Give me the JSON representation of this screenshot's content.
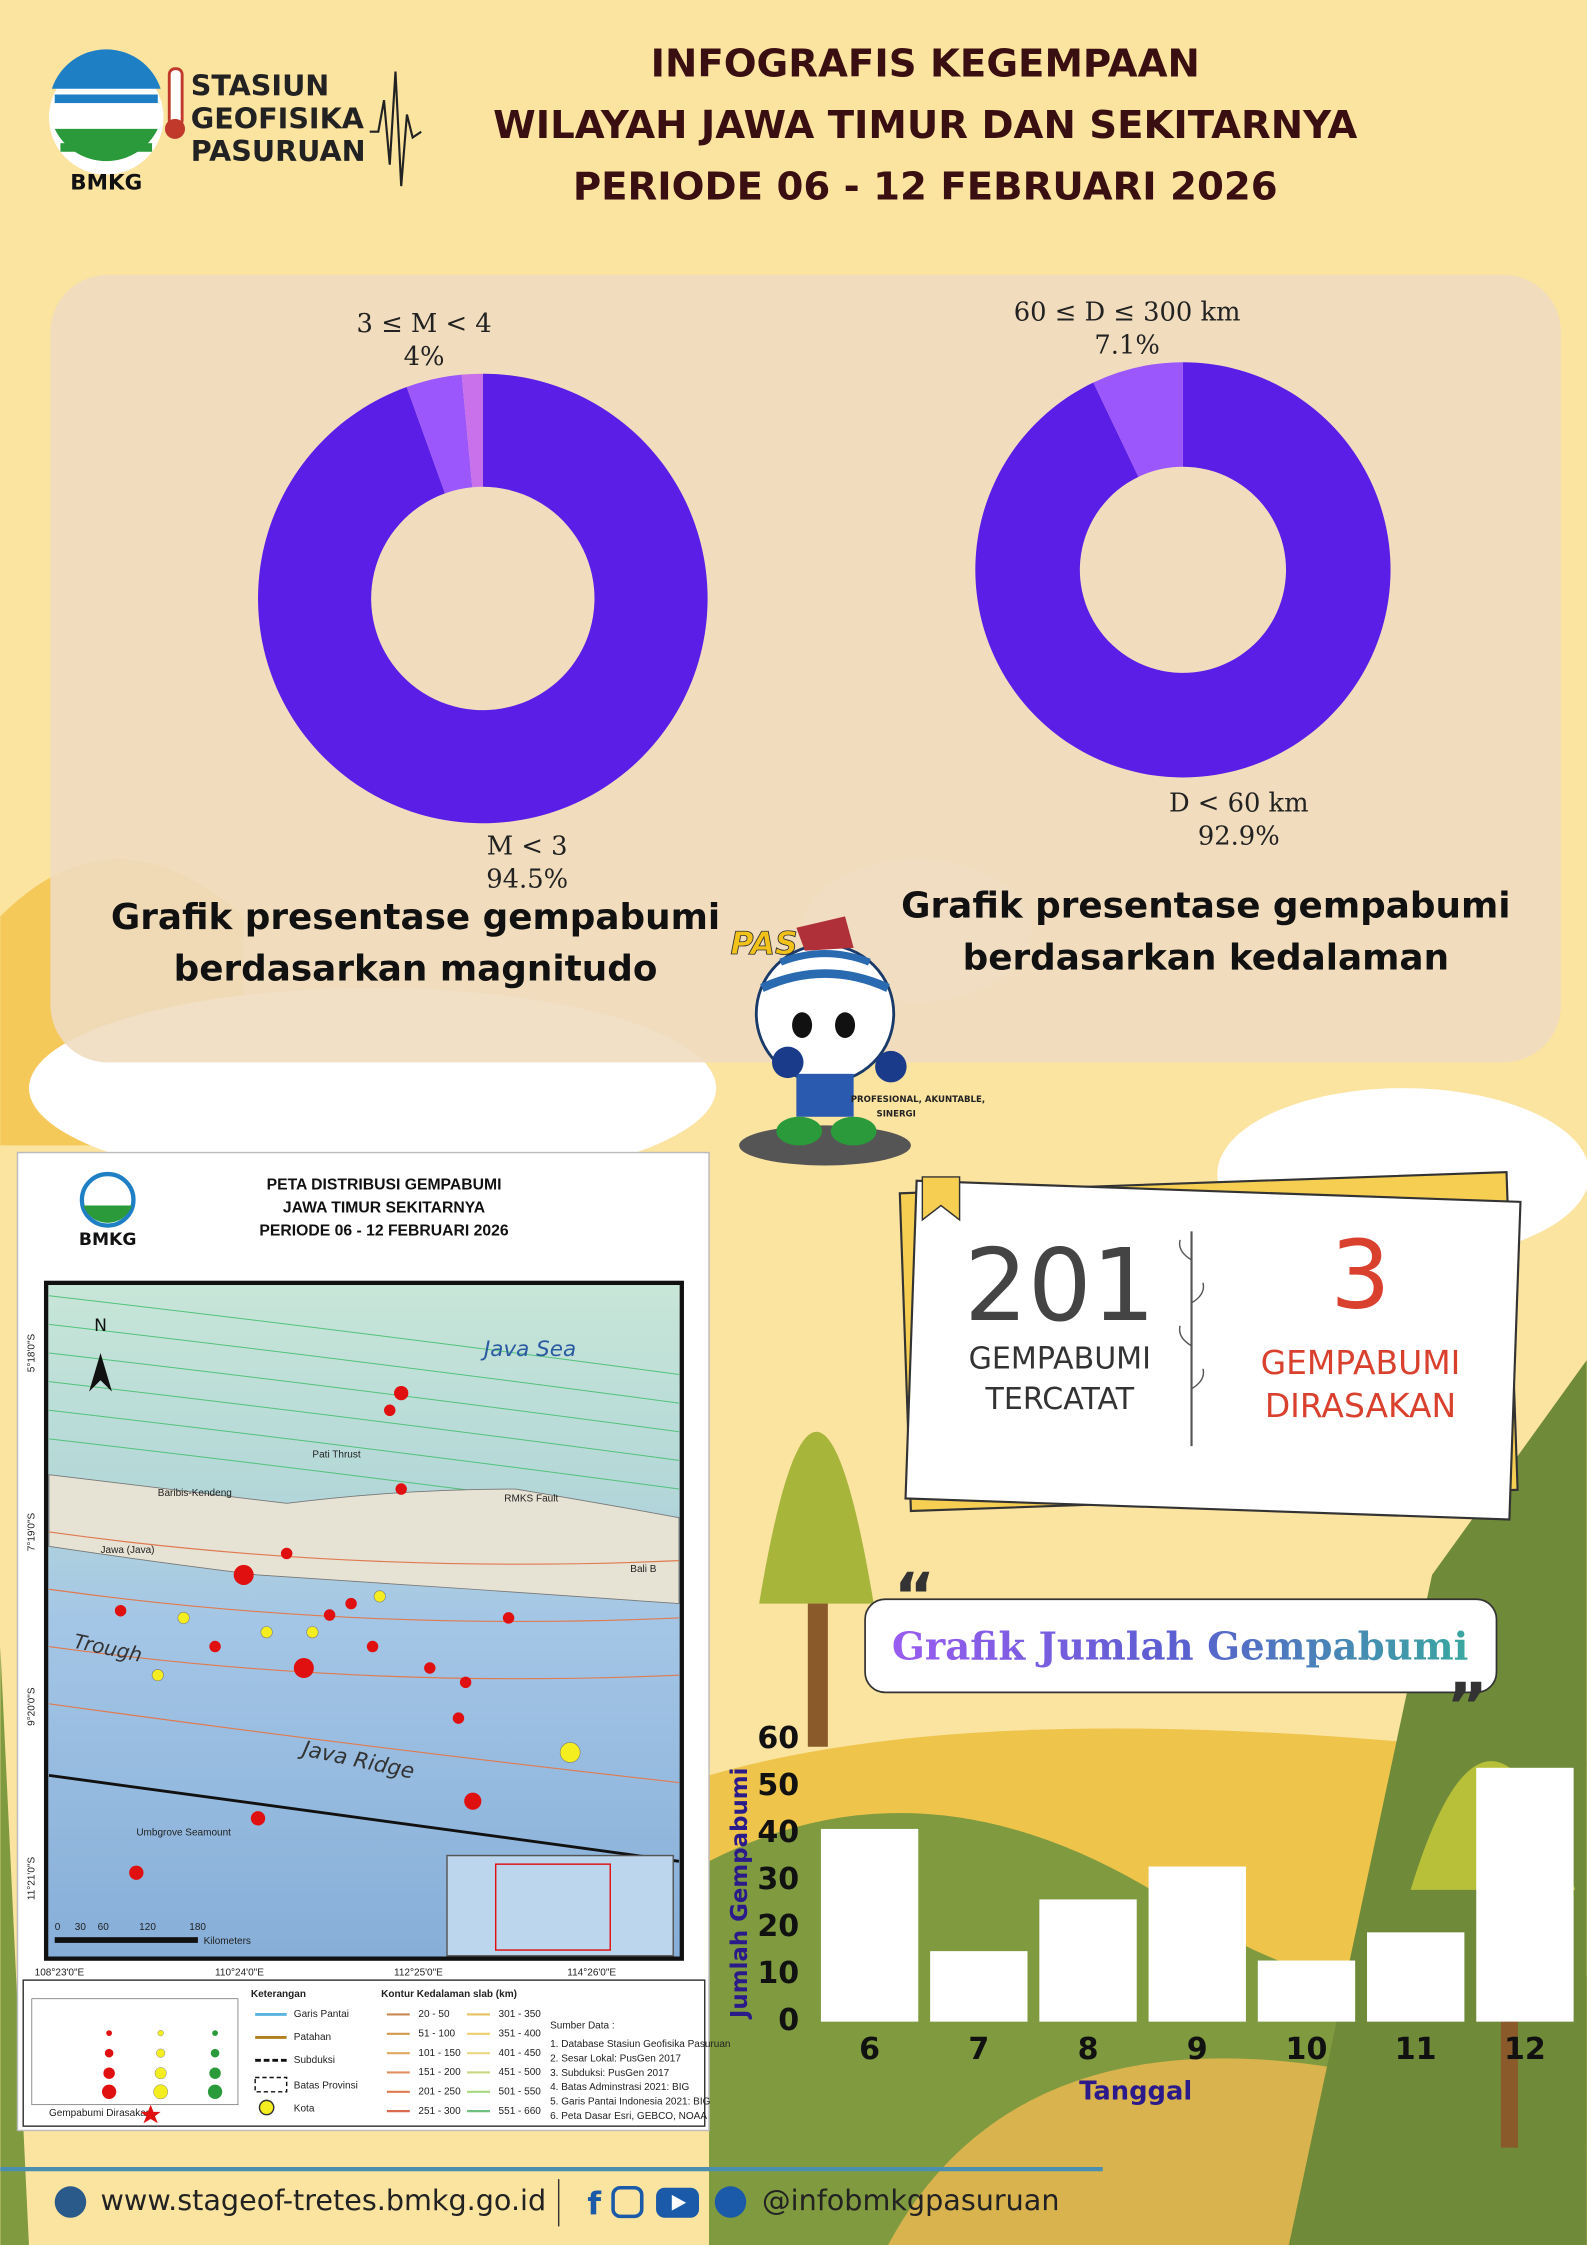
{
  "header": {
    "logo": "BMKG",
    "org": [
      "STASIUN",
      "GEOFISIKA",
      "PASURUAN"
    ],
    "title": [
      "INFOGRAFIS KEGEMPAAN",
      "WILAYAH JAWA TIMUR DAN SEKITARNYA",
      "PERIODE 06 - 12 FEBRUARI 2026"
    ]
  },
  "chart_data": [
    {
      "type": "pie",
      "categories": [
        "M < 3",
        "3 ≤ M < 4",
        null
      ],
      "values": [
        94.5,
        4,
        1.5
      ],
      "value_labels": [
        "94.5%",
        "4%",
        null
      ],
      "colors": [
        "#5a1ee6",
        "#9b57fb",
        "#c971ea"
      ],
      "caption": [
        "Grafik presentase gempabumi",
        "berdasarkan magnitudo"
      ]
    },
    {
      "type": "pie",
      "categories": [
        "D < 60 km",
        "60 ≤ D ≤ 300 km"
      ],
      "values": [
        92.9,
        7.1
      ],
      "value_labels": [
        "92.9%",
        "7.1%"
      ],
      "colors": [
        "#5a1ee6",
        "#9b57fb"
      ],
      "caption": [
        "Grafik presentase gempabumi",
        "berdasarkan kedalaman"
      ]
    },
    {
      "type": "bar",
      "title": "Grafik Jumlah Gempabumi",
      "xlabel": "Tanggal",
      "ylabel": "Jumlah Gempabumi",
      "categories": [
        "6",
        "7",
        "8",
        "9",
        "10",
        "11",
        "12"
      ],
      "values": [
        41,
        15,
        26,
        33,
        13,
        19,
        54
      ],
      "color": "#ffffff",
      "ylim": [
        0,
        60
      ],
      "yticks": [
        0,
        10,
        20,
        30,
        40,
        50,
        60
      ]
    }
  ],
  "mascot": {
    "name": "PAS",
    "motto": [
      "PROFESIONAL, AKUNTABLE,",
      "SINERGI"
    ]
  },
  "stats": {
    "recorded": "201",
    "recorded_label": [
      "GEMPABUMI",
      "TERCATAT"
    ],
    "felt": "3",
    "felt_label": [
      "GEMPABUMI",
      "DIRASAKAN"
    ]
  },
  "map": {
    "logo": "BMKG",
    "title": [
      "PETA DISTRIBUSI GEMPABUMI",
      "JAWA TIMUR SEKITARNYA",
      "PERIODE 06 - 12  FEBRUARI 2026"
    ],
    "labels": [
      "Java Sea",
      "Java Ridge",
      "Trough",
      "Jawa (Java)",
      "Bali B",
      "RMKS Fault",
      "Baribis-Kendeng",
      "Pati Thrust",
      "Umbgrove Seamount"
    ],
    "lon": [
      "108°23'0\"E",
      "110°24'0\"E",
      "112°25'0\"E",
      "114°26'0\"E"
    ],
    "lat": [
      "5°18'0\"S",
      "7°19'0\"S",
      "9°20'0\"S",
      "11°21'0\"S"
    ],
    "scale": [
      "0",
      "30",
      "60",
      "120",
      "180"
    ],
    "scale_unit": "Kilometers",
    "legend_title": "Keterangan",
    "legend": [
      "Garis Pantai",
      "Patahan",
      "Subduksi",
      "Batas Provinsi",
      "Kota"
    ],
    "felt": "Gempabumi Dirasakan",
    "contour_title": "Kontur Kedalaman slab (km)",
    "contours": [
      "20 - 50",
      "51 - 100",
      "101 - 150",
      "151 - 200",
      "201 - 250",
      "251 - 300",
      "301 - 350",
      "351 - 400",
      "401 - 450",
      "451 - 500",
      "501 - 550",
      "551 - 660"
    ],
    "source_title": "Sumber Data :",
    "sources": [
      "1. Database Stasiun Geofisika Pasuruan",
      "2. Sesar Lokal: PusGen 2017",
      "3. Subduksi: PusGen 2017",
      "4. Batas Adminstrasi 2021: BIG",
      "5. Garis Pantai Indonesia 2021: BIG",
      "6. Peta Dasar Esri, GEBCO, NOAA"
    ]
  },
  "footer": {
    "website": "www.stageof-tretes.bmkg.go.id",
    "social": "@infobmkgpasuruan"
  }
}
